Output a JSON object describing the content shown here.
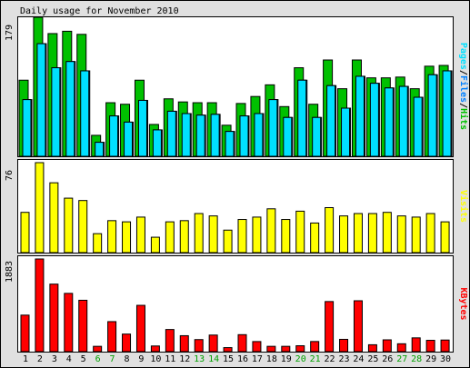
{
  "chart_data": [
    {
      "type": "bar",
      "title": "Daily usage for November 2010",
      "categories": [
        "1",
        "2",
        "3",
        "4",
        "5",
        "6",
        "7",
        "8",
        "9",
        "10",
        "11",
        "12",
        "13",
        "14",
        "15",
        "16",
        "17",
        "18",
        "19",
        "20",
        "21",
        "22",
        "23",
        "24",
        "25",
        "26",
        "27",
        "28",
        "29",
        "30"
      ],
      "weekend_days": [
        "6",
        "7",
        "13",
        "14",
        "20",
        "21",
        "27",
        "28"
      ],
      "ymax_label": "179",
      "ylim": [
        0,
        179
      ],
      "series": [
        {
          "name": "Hits",
          "color": "#00c000",
          "values": [
            98,
            179,
            158,
            161,
            157,
            27,
            69,
            67,
            98,
            41,
            74,
            70,
            69,
            69,
            40,
            68,
            77,
            92,
            64,
            114,
            67,
            124,
            87,
            124,
            101,
            101,
            102,
            87,
            116,
            117
          ]
        },
        {
          "name": "Files",
          "color": "#0080ff",
          "values": [
            73,
            145,
            114,
            122,
            110,
            18,
            52,
            44,
            72,
            34,
            58,
            55,
            53,
            54,
            32,
            52,
            55,
            73,
            50,
            98,
            50,
            91,
            62,
            103,
            94,
            88,
            90,
            76,
            105,
            110
          ]
        },
        {
          "name": "Pages",
          "color": "#00e0ff",
          "values": [
            73,
            145,
            114,
            122,
            110,
            18,
            52,
            44,
            72,
            34,
            58,
            55,
            53,
            54,
            32,
            52,
            55,
            73,
            50,
            98,
            50,
            91,
            62,
            103,
            94,
            88,
            90,
            76,
            105,
            110
          ]
        }
      ],
      "legend_labels": {
        "pages": "Pages",
        "files": "Files",
        "hits": "Hits",
        "sep": "/"
      }
    },
    {
      "type": "bar",
      "ymax_label": "76",
      "ylim": [
        0,
        76
      ],
      "series": [
        {
          "name": "Visits",
          "color": "#ffff00",
          "values": [
            34,
            76,
            59,
            46,
            44,
            16,
            27,
            26,
            30,
            13,
            26,
            27,
            33,
            31,
            19,
            28,
            30,
            37,
            28,
            35,
            25,
            38,
            31,
            33,
            33,
            34,
            31,
            30,
            33,
            26
          ]
        }
      ]
    },
    {
      "type": "bar",
      "ymax_label": "1883",
      "ylim": [
        0,
        1883
      ],
      "series": [
        {
          "name": "KBytes",
          "color": "#ff0000",
          "values": [
            742,
            1883,
            1372,
            1184,
            1044,
            108,
            610,
            357,
            941,
            115,
            450,
            324,
            245,
            337,
            82,
            345,
            205,
            108,
            108,
            120,
            206,
            1018,
            250,
            1034,
            140,
            240,
            160,
            280,
            230,
            236
          ]
        }
      ]
    }
  ]
}
